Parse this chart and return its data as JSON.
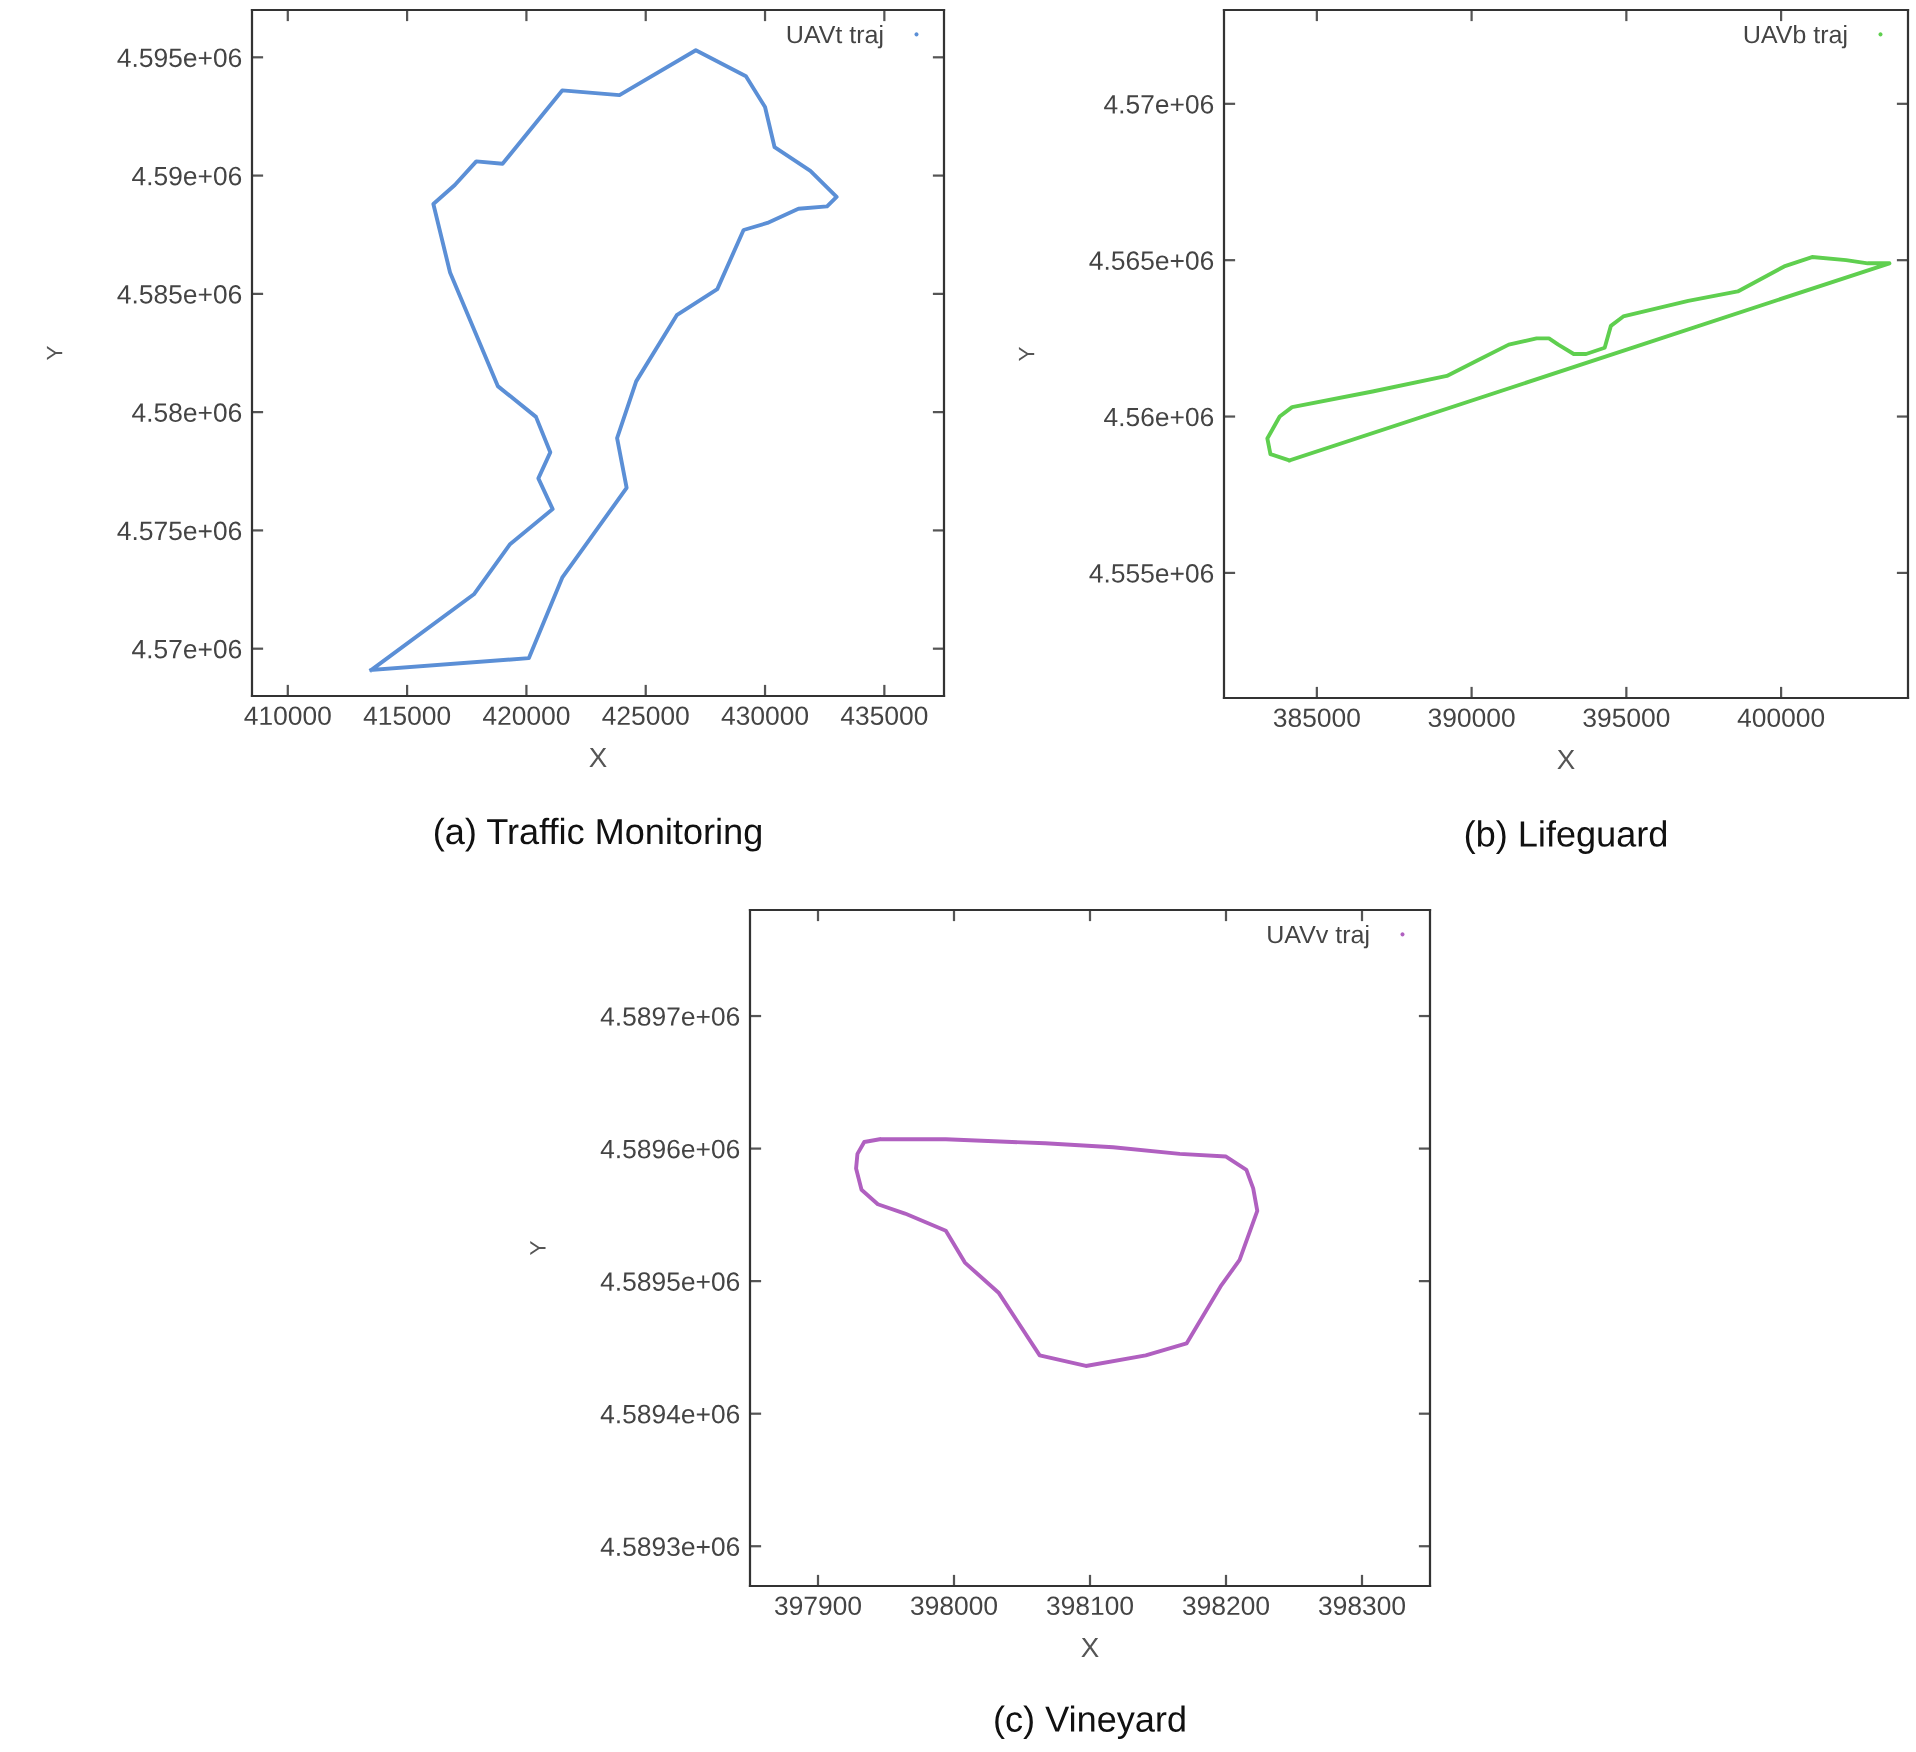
{
  "chart_data": [
    {
      "type": "line",
      "title": "(a) Traffic Monitoring",
      "xlabel": "X",
      "ylabel": "Y",
      "legend": "top right",
      "grid": false,
      "xlim": [
        408500,
        437500
      ],
      "ylim": [
        4568000,
        4597000
      ],
      "xticks": [
        410000,
        415000,
        420000,
        425000,
        430000,
        435000
      ],
      "yticks": [
        {
          "value": 4570000,
          "label": "4.57e+06"
        },
        {
          "value": 4575000,
          "label": "4.575e+06"
        },
        {
          "value": 4580000,
          "label": "4.58e+06"
        },
        {
          "value": 4585000,
          "label": "4.585e+06"
        },
        {
          "value": 4590000,
          "label": "4.59e+06"
        },
        {
          "value": 4595000,
          "label": "4.595e+06"
        }
      ],
      "series": [
        {
          "name": "UAVt traj",
          "color": "#5b8fd6",
          "x": [
            413507,
            420100,
            421500,
            424200,
            423800,
            424600,
            426300,
            428000,
            429100,
            430100,
            431400,
            432600,
            433000,
            431900,
            430400,
            430000,
            429200,
            427100,
            423900,
            421500,
            419000,
            417900,
            417000,
            416100,
            416800,
            418800,
            420400,
            421000,
            420500,
            421100,
            419300,
            417800,
            413500
          ],
          "values": [
            4569100,
            4569600,
            4573000,
            4576800,
            4578900,
            4581300,
            4584100,
            4585200,
            4587700,
            4588000,
            4588600,
            4588700,
            4589100,
            4590200,
            4591200,
            4592900,
            4594200,
            4595300,
            4593400,
            4593600,
            4590500,
            4590600,
            4589600,
            4588800,
            4585900,
            4581100,
            4579800,
            4578300,
            4577200,
            4575900,
            4574400,
            4572300,
            4569100
          ]
        }
      ]
    },
    {
      "type": "line",
      "title": "(b) Lifeguard",
      "xlabel": "X",
      "ylabel": "Y",
      "legend": "top right",
      "grid": false,
      "xlim": [
        382000,
        404100
      ],
      "ylim": [
        4551000,
        4573000
      ],
      "xticks": [
        385000,
        390000,
        395000,
        400000
      ],
      "yticks": [
        {
          "value": 4555000,
          "label": "4.555e+06"
        },
        {
          "value": 4560000,
          "label": "4.56e+06"
        },
        {
          "value": 4565000,
          "label": "4.565e+06"
        },
        {
          "value": 4570000,
          "label": "4.57e+06"
        }
      ],
      "series": [
        {
          "name": "UAVb traj",
          "color": "#5fcf4f",
          "x": [
            384125,
            403500,
            402800,
            402100,
            401000,
            400100,
            398600,
            397000,
            394900,
            394500,
            394300,
            393700,
            393300,
            392800,
            392500,
            392100,
            391200,
            390200,
            389200,
            386800,
            384200,
            383800,
            383400,
            383500,
            384100
          ],
          "values": [
            4558600,
            4564900,
            4564900,
            4565000,
            4565100,
            4564800,
            4564000,
            4563700,
            4563200,
            4562900,
            4562200,
            4562000,
            4562000,
            4562300,
            4562500,
            4562500,
            4562300,
            4561800,
            4561300,
            4560800,
            4560300,
            4560000,
            4559300,
            4558800,
            4558600
          ]
        }
      ]
    },
    {
      "type": "line",
      "title": "(c) Vineyard",
      "xlabel": "X",
      "ylabel": "Y",
      "legend": "top right",
      "grid": false,
      "xlim": [
        397850,
        398350
      ],
      "ylim": [
        4589270,
        4589780
      ],
      "xticks": [
        397900,
        398000,
        398100,
        398200,
        398300
      ],
      "yticks": [
        {
          "value": 4589300,
          "label": "4.5893e+06"
        },
        {
          "value": 4589400,
          "label": "4.5894e+06"
        },
        {
          "value": 4589500,
          "label": "4.5895e+06"
        },
        {
          "value": 4589600,
          "label": "4.5896e+06"
        },
        {
          "value": 4589700,
          "label": "4.5897e+06"
        }
      ],
      "series": [
        {
          "name": "UAVv traj",
          "color": "#b060c0",
          "x": [
            397947,
            397994,
            398067,
            398117,
            398166,
            398200,
            398215,
            398220,
            398223,
            398210,
            398196,
            398171,
            398141,
            398097,
            398063,
            398033,
            398008,
            397994,
            397964,
            397944,
            397932,
            397928,
            397929,
            397934,
            397945
          ],
          "values": [
            4589607,
            4589607,
            4589604,
            4589601,
            4589596,
            4589594,
            4589584,
            4589570,
            4589553,
            4589516,
            4589496,
            4589453,
            4589444,
            4589436,
            4589444,
            4589491,
            4589514,
            4589538,
            4589551,
            4589558,
            4589569,
            4589585,
            4589596,
            4589605,
            4589607
          ]
        }
      ]
    }
  ]
}
